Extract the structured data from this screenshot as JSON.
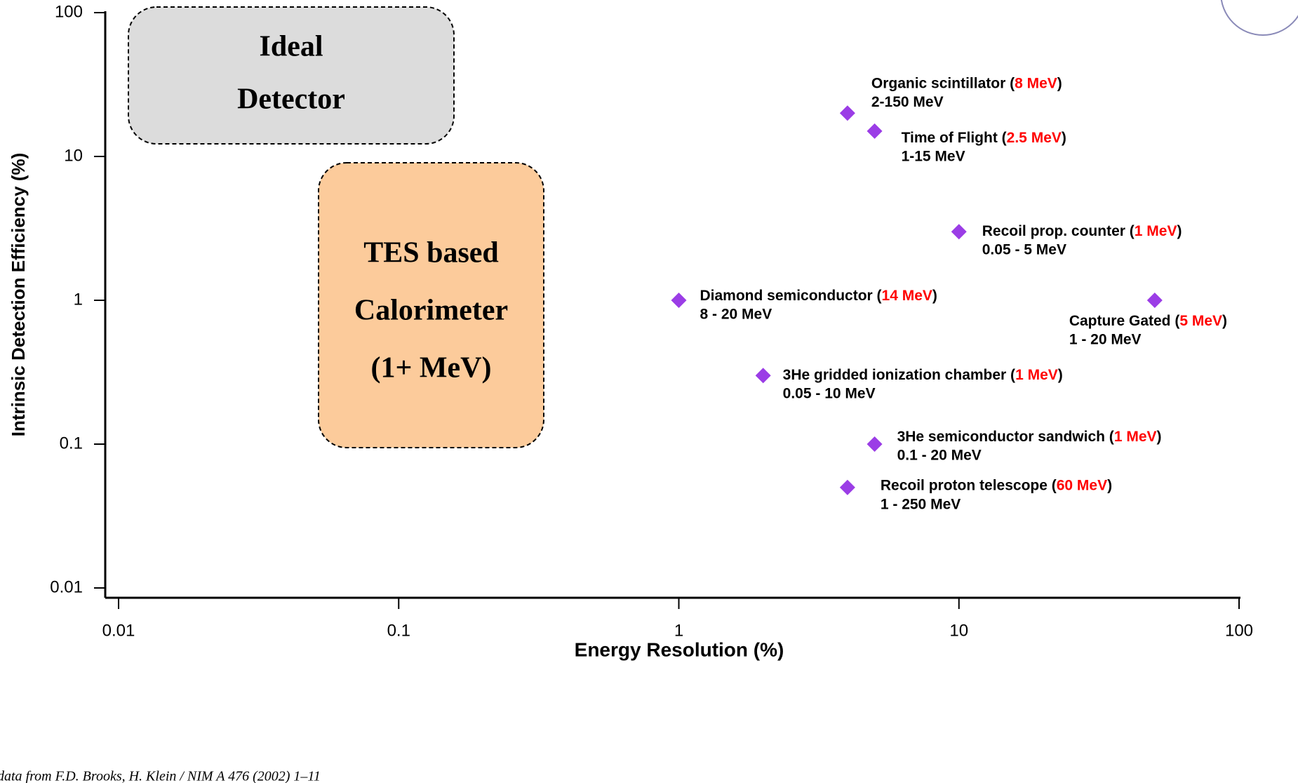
{
  "chart_data": {
    "type": "scatter",
    "x_label": "Energy Resolution (%)",
    "y_label": "Intrinsic Detection Efficiency (%)",
    "xscale": "log",
    "yscale": "log",
    "xlim": [
      0.01,
      100
    ],
    "ylim": [
      0.01,
      100
    ],
    "xticks": [
      0.01,
      0.1,
      1,
      10,
      100
    ],
    "yticks": [
      0.01,
      0.1,
      1,
      10,
      100
    ],
    "color": "#9b3de6",
    "highlight_color": "#ff0000",
    "points": [
      {
        "x": 4,
        "y": 20,
        "label_parts": [
          "Organic scintillator (",
          "8 MeV",
          ")"
        ],
        "range": "2-150 MeV"
      },
      {
        "x": 5,
        "y": 15,
        "label_parts": [
          "Time of Flight (",
          "2.5 MeV",
          ")"
        ],
        "range": "1-15 MeV"
      },
      {
        "x": 10,
        "y": 3,
        "label_parts": [
          "Recoil prop. counter (",
          "1 MeV",
          ")"
        ],
        "range": "0.05 - 5 MeV"
      },
      {
        "x": 1,
        "y": 1,
        "label_parts": [
          "Diamond semiconductor (",
          "14 MeV",
          ")"
        ],
        "range": "8 - 20 MeV"
      },
      {
        "x": 50,
        "y": 1,
        "label_parts": [
          "Capture Gated (",
          "5 MeV",
          ")"
        ],
        "range": "1 - 20 MeV"
      },
      {
        "x": 2,
        "y": 0.3,
        "label_parts": [
          "3He gridded ionization chamber (",
          "1 MeV",
          ")"
        ],
        "range": "0.05 - 10 MeV"
      },
      {
        "x": 5,
        "y": 0.1,
        "label_parts": [
          "3He semiconductor sandwich (",
          "1 MeV",
          ")"
        ],
        "range": "0.1 - 20 MeV"
      },
      {
        "x": 4,
        "y": 0.05,
        "label_parts": [
          "Recoil proton telescope (",
          "60 MeV",
          ")"
        ],
        "range": "1 - 250 MeV"
      }
    ],
    "annotations": [
      {
        "lines": [
          "Ideal",
          "Detector"
        ],
        "color": "#dcdcdc"
      },
      {
        "lines": [
          "TES based",
          "Calorimeter",
          "(1+ MeV)"
        ],
        "color": "#fccb9b"
      }
    ],
    "source": "data from F.D. Brooks, H. Klein / NIM A 476 (2002) 1–11"
  }
}
